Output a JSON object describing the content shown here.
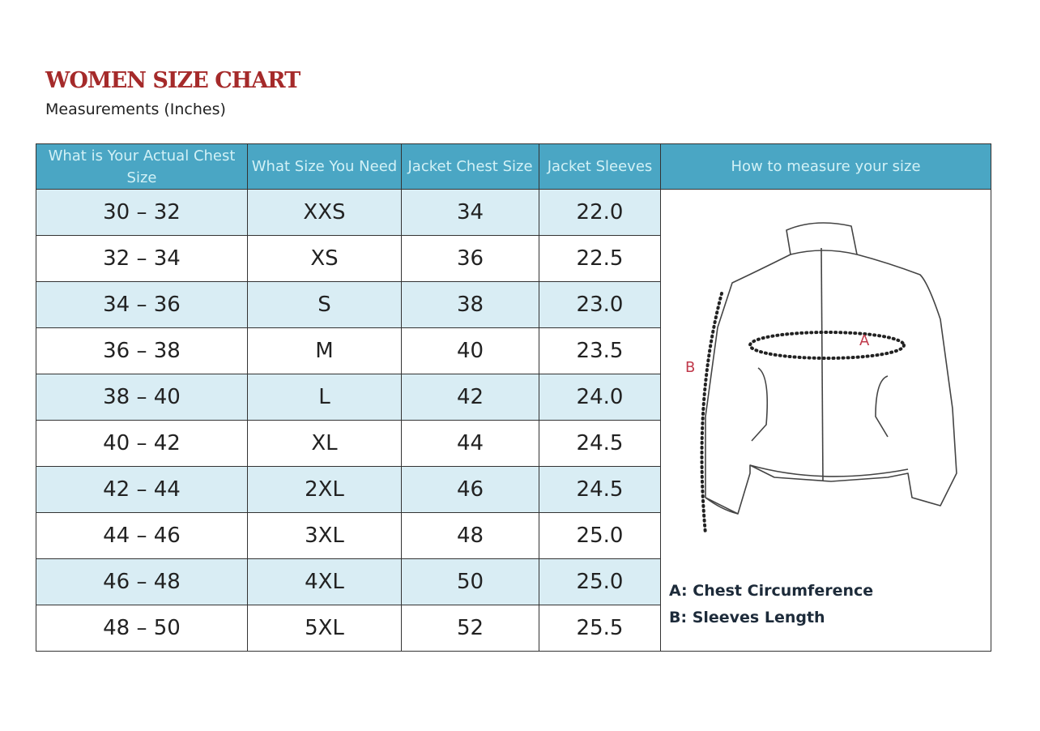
{
  "title": "WOMEN SIZE CHART",
  "subtitle": "Measurements  (Inches)",
  "table": {
    "headers": [
      "What is Your Actual Chest Size",
      "What Size You Need",
      "Jacket Chest Size",
      "Jacket Sleeves",
      "How to measure your size"
    ],
    "rows": [
      [
        "30 – 32",
        "XXS",
        "34",
        "22.0"
      ],
      [
        "32 – 34",
        "XS",
        "36",
        "22.5"
      ],
      [
        "34 – 36",
        "S",
        "38",
        "23.0"
      ],
      [
        "36 – 38",
        "M",
        "40",
        "23.5"
      ],
      [
        "38 – 40",
        "L",
        "42",
        "24.0"
      ],
      [
        "40 – 42",
        "XL",
        "44",
        "24.5"
      ],
      [
        "42 – 44",
        "2XL",
        "46",
        "24.5"
      ],
      [
        "44 – 46",
        "3XL",
        "48",
        "25.0"
      ],
      [
        "46 – 48",
        "4XL",
        "50",
        "25.0"
      ],
      [
        "48 – 50",
        "5XL",
        "52",
        "25.5"
      ]
    ]
  },
  "diagram": {
    "label_a": "A",
    "label_b": "B",
    "legend_a": "A: Chest Circumference",
    "legend_b": "B: Sleeves Length"
  },
  "colors": {
    "header_bg": "#4aa6c4",
    "header_text": "#d2f1f6",
    "row_alt": "#d9edf4",
    "title": "#a52a2a",
    "marker": "#c0394b"
  }
}
